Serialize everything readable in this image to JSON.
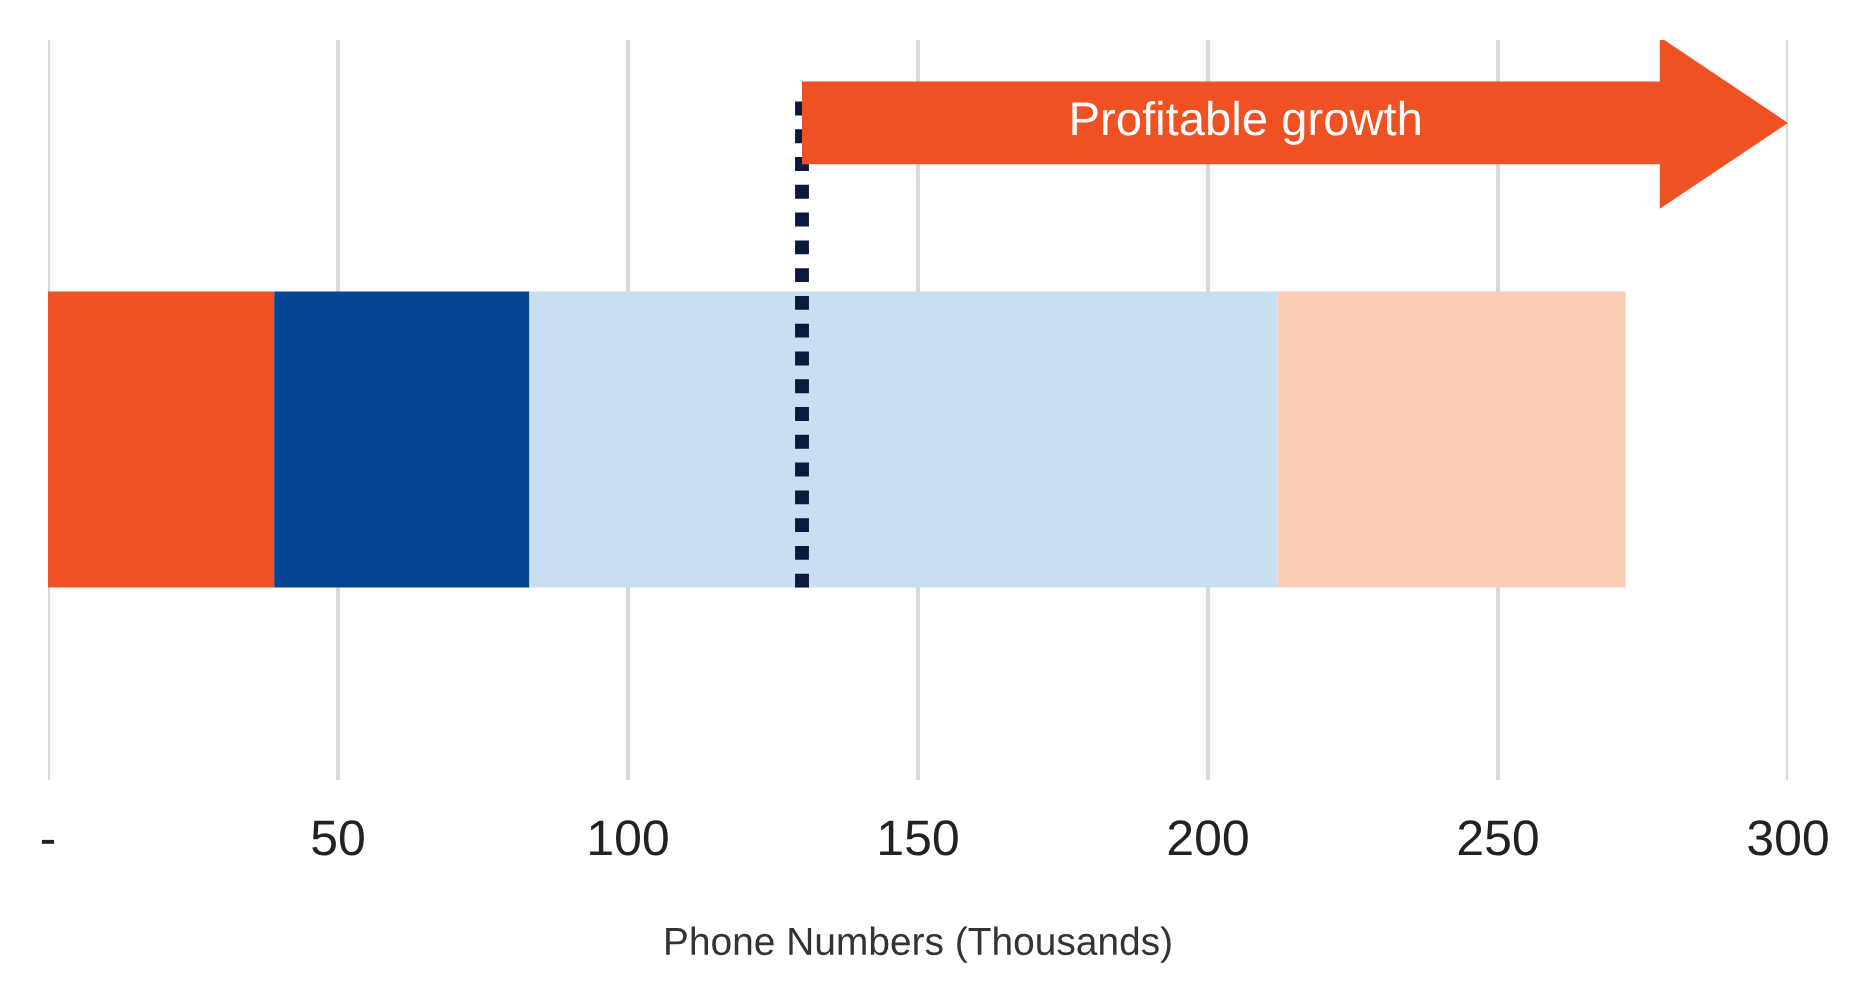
{
  "chart_data": {
    "type": "bar",
    "orientation": "horizontal",
    "stacked": true,
    "categories": [
      null
    ],
    "xlabel": "Phone Numbers (Thousands)",
    "series": [
      {
        "color": "#f05123",
        "values": [
          39
        ]
      },
      {
        "color": "#034592",
        "values": [
          44
        ]
      },
      {
        "color": "#c8dff1",
        "values": [
          129
        ]
      },
      {
        "color": "#fbcdb5",
        "values": [
          60
        ]
      }
    ],
    "xlim": [
      0,
      300
    ],
    "xticks": [
      {
        "value": 0,
        "label": "-"
      },
      50,
      100,
      150,
      200,
      250,
      300
    ],
    "grid": "x",
    "ref_lines": [
      {
        "axis": "x",
        "value": 130,
        "color": "#0a1a3f",
        "line_style": "dotted"
      }
    ],
    "annotations": [
      "Profitable growth"
    ]
  }
}
